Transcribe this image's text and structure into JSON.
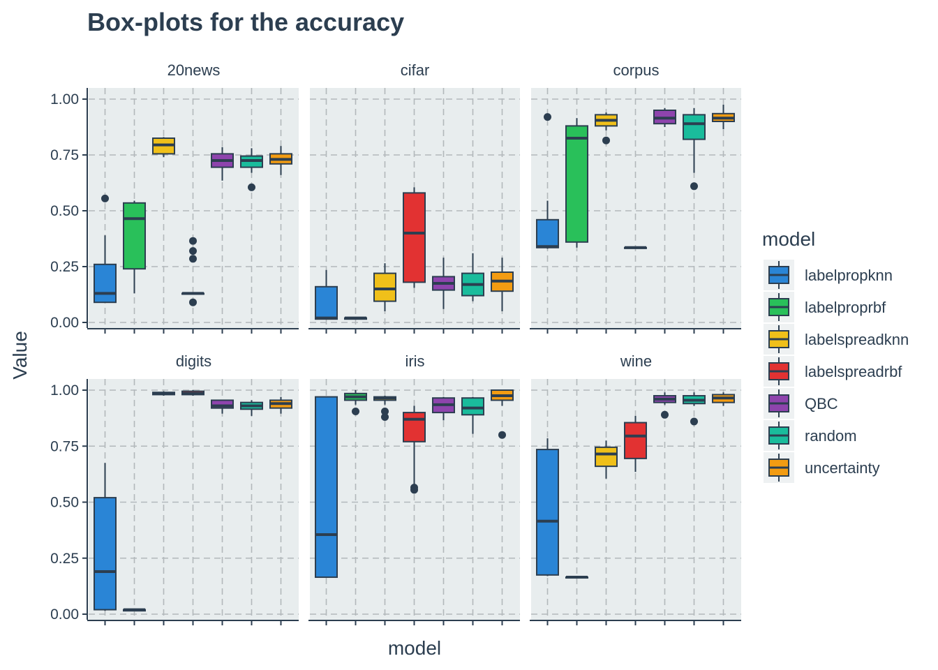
{
  "chart_data": {
    "type": "box",
    "title": "Box-plots for the accuracy",
    "xlabel": "model",
    "ylabel": "Value",
    "ylim": [
      0,
      1
    ],
    "y_ticks": [
      0,
      0.25,
      0.5,
      0.75,
      1
    ],
    "y_tick_labels": [
      "0.00",
      "0.25",
      "0.50",
      "0.75",
      "1.00"
    ],
    "grid": true,
    "legend": {
      "title": "model",
      "position": "right",
      "entries": [
        "labelpropknn",
        "labelproprbf",
        "labelspreadknn",
        "labelspreadrbf",
        "QBC",
        "random",
        "uncertainty"
      ]
    },
    "colors": {
      "labelpropknn": "#2a85d6",
      "labelproprbf": "#29c05a",
      "labelspreadknn": "#f0c01a",
      "labelspreadrbf": "#e23232",
      "QBC": "#8e44ad",
      "random": "#1abc9c",
      "uncertainty": "#f39c12",
      "panel_bg": "#e8edee",
      "grid": "#b2b8bb",
      "ink": "#2c3e50"
    },
    "models": [
      "labelpropknn",
      "labelproprbf",
      "labelspreadknn",
      "labelspreadrbf",
      "QBC",
      "random",
      "uncertainty"
    ],
    "panels": [
      {
        "name": "20news",
        "boxes": [
          {
            "model": "labelpropknn",
            "low": 0.09,
            "q1": 0.09,
            "median": 0.13,
            "q3": 0.26,
            "high": 0.39,
            "outliers": [
              0.555
            ]
          },
          {
            "model": "labelproprbf",
            "low": 0.13,
            "q1": 0.24,
            "median": 0.465,
            "q3": 0.535,
            "high": 0.545,
            "outliers": []
          },
          {
            "model": "labelspreadknn",
            "low": 0.74,
            "q1": 0.755,
            "median": 0.795,
            "q3": 0.825,
            "high": 0.83,
            "outliers": []
          },
          {
            "model": "labelspreadrbf",
            "low": 0.13,
            "q1": 0.13,
            "median": 0.13,
            "q3": 0.13,
            "high": 0.13,
            "outliers": [
              0.09,
              0.285,
              0.32,
              0.365
            ]
          },
          {
            "model": "QBC",
            "low": 0.635,
            "q1": 0.695,
            "median": 0.725,
            "q3": 0.755,
            "high": 0.785,
            "outliers": []
          },
          {
            "model": "random",
            "low": 0.67,
            "q1": 0.695,
            "median": 0.725,
            "q3": 0.745,
            "high": 0.78,
            "outliers": [
              0.605
            ]
          },
          {
            "model": "uncertainty",
            "low": 0.66,
            "q1": 0.71,
            "median": 0.73,
            "q3": 0.755,
            "high": 0.79,
            "outliers": []
          }
        ]
      },
      {
        "name": "cifar",
        "boxes": [
          {
            "model": "labelpropknn",
            "low": 0.015,
            "q1": 0.015,
            "median": 0.02,
            "q3": 0.16,
            "high": 0.235,
            "outliers": []
          },
          {
            "model": "labelproprbf",
            "low": 0.015,
            "q1": 0.015,
            "median": 0.02,
            "q3": 0.02,
            "high": 0.025,
            "outliers": []
          },
          {
            "model": "labelspreadknn",
            "low": 0.05,
            "q1": 0.095,
            "median": 0.15,
            "q3": 0.22,
            "high": 0.265,
            "outliers": []
          },
          {
            "model": "labelspreadrbf",
            "low": 0.155,
            "q1": 0.18,
            "median": 0.4,
            "q3": 0.58,
            "high": 0.605,
            "outliers": []
          },
          {
            "model": "QBC",
            "low": 0.06,
            "q1": 0.145,
            "median": 0.175,
            "q3": 0.205,
            "high": 0.29,
            "outliers": []
          },
          {
            "model": "random",
            "low": 0.095,
            "q1": 0.12,
            "median": 0.17,
            "q3": 0.22,
            "high": 0.31,
            "outliers": []
          },
          {
            "model": "uncertainty",
            "low": 0.05,
            "q1": 0.14,
            "median": 0.185,
            "q3": 0.225,
            "high": 0.29,
            "outliers": []
          }
        ]
      },
      {
        "name": "corpus",
        "boxes": [
          {
            "model": "labelpropknn",
            "low": 0.33,
            "q1": 0.335,
            "median": 0.34,
            "q3": 0.46,
            "high": 0.545,
            "outliers": [
              0.92
            ]
          },
          {
            "model": "labelproprbf",
            "low": 0.335,
            "q1": 0.36,
            "median": 0.825,
            "q3": 0.88,
            "high": 0.915,
            "outliers": []
          },
          {
            "model": "labelspreadknn",
            "low": 0.86,
            "q1": 0.88,
            "median": 0.905,
            "q3": 0.93,
            "high": 0.94,
            "outliers": [
              0.815
            ]
          },
          {
            "model": "labelspreadrbf",
            "low": 0.33,
            "q1": 0.335,
            "median": 0.335,
            "q3": 0.335,
            "high": 0.34,
            "outliers": []
          },
          {
            "model": "QBC",
            "low": 0.875,
            "q1": 0.89,
            "median": 0.915,
            "q3": 0.95,
            "high": 0.96,
            "outliers": []
          },
          {
            "model": "random",
            "low": 0.67,
            "q1": 0.82,
            "median": 0.89,
            "q3": 0.93,
            "high": 0.96,
            "outliers": [
              0.61
            ]
          },
          {
            "model": "uncertainty",
            "low": 0.865,
            "q1": 0.9,
            "median": 0.915,
            "q3": 0.935,
            "high": 0.975,
            "outliers": []
          }
        ]
      },
      {
        "name": "digits",
        "boxes": [
          {
            "model": "labelpropknn",
            "low": 0.015,
            "q1": 0.02,
            "median": 0.19,
            "q3": 0.52,
            "high": 0.675,
            "outliers": []
          },
          {
            "model": "labelproprbf",
            "low": 0.015,
            "q1": 0.015,
            "median": 0.02,
            "q3": 0.02,
            "high": 0.025,
            "outliers": []
          },
          {
            "model": "labelspreadknn",
            "low": 0.975,
            "q1": 0.98,
            "median": 0.985,
            "q3": 0.99,
            "high": 0.995,
            "outliers": []
          },
          {
            "model": "labelspreadrbf",
            "low": 0.975,
            "q1": 0.98,
            "median": 0.985,
            "q3": 0.995,
            "high": 1.0,
            "outliers": []
          },
          {
            "model": "QBC",
            "low": 0.895,
            "q1": 0.92,
            "median": 0.93,
            "q3": 0.955,
            "high": 0.955,
            "outliers": []
          },
          {
            "model": "random",
            "low": 0.885,
            "q1": 0.915,
            "median": 0.93,
            "q3": 0.945,
            "high": 0.955,
            "outliers": []
          },
          {
            "model": "uncertainty",
            "low": 0.895,
            "q1": 0.92,
            "median": 0.94,
            "q3": 0.955,
            "high": 0.97,
            "outliers": []
          }
        ]
      },
      {
        "name": "iris",
        "boxes": [
          {
            "model": "labelpropknn",
            "low": 0.165,
            "q1": 0.165,
            "median": 0.355,
            "q3": 0.97,
            "high": 0.97,
            "outliers": []
          },
          {
            "model": "labelproprbf",
            "low": 0.935,
            "q1": 0.955,
            "median": 0.97,
            "q3": 0.985,
            "high": 1.0,
            "outliers": [
              0.905
            ]
          },
          {
            "model": "labelspreadknn",
            "low": 0.935,
            "q1": 0.955,
            "median": 0.965,
            "q3": 0.97,
            "high": 0.975,
            "outliers": [
              0.88,
              0.905
            ]
          },
          {
            "model": "labelspreadrbf",
            "low": 0.58,
            "q1": 0.77,
            "median": 0.87,
            "q3": 0.9,
            "high": 0.93,
            "outliers": [
              0.555,
              0.565
            ]
          },
          {
            "model": "QBC",
            "low": 0.865,
            "q1": 0.9,
            "median": 0.935,
            "q3": 0.965,
            "high": 0.97,
            "outliers": []
          },
          {
            "model": "random",
            "low": 0.805,
            "q1": 0.89,
            "median": 0.92,
            "q3": 0.965,
            "high": 0.97,
            "outliers": []
          },
          {
            "model": "uncertainty",
            "low": 0.93,
            "q1": 0.955,
            "median": 0.975,
            "q3": 1.0,
            "high": 1.0,
            "outliers": [
              0.8
            ]
          }
        ]
      },
      {
        "name": "wine",
        "boxes": [
          {
            "model": "labelpropknn",
            "low": 0.17,
            "q1": 0.175,
            "median": 0.415,
            "q3": 0.735,
            "high": 0.785,
            "outliers": []
          },
          {
            "model": "labelproprbf",
            "low": 0.16,
            "q1": 0.165,
            "median": 0.165,
            "q3": 0.165,
            "high": 0.17,
            "outliers": []
          },
          {
            "model": "labelspreadknn",
            "low": 0.605,
            "q1": 0.66,
            "median": 0.715,
            "q3": 0.745,
            "high": 0.775,
            "outliers": []
          },
          {
            "model": "labelspreadrbf",
            "low": 0.635,
            "q1": 0.695,
            "median": 0.795,
            "q3": 0.855,
            "high": 0.885,
            "outliers": []
          },
          {
            "model": "QBC",
            "low": 0.935,
            "q1": 0.945,
            "median": 0.96,
            "q3": 0.975,
            "high": 0.99,
            "outliers": [
              0.89
            ]
          },
          {
            "model": "random",
            "low": 0.93,
            "q1": 0.94,
            "median": 0.955,
            "q3": 0.975,
            "high": 0.99,
            "outliers": [
              0.86
            ]
          },
          {
            "model": "uncertainty",
            "low": 0.93,
            "q1": 0.945,
            "median": 0.965,
            "q3": 0.98,
            "high": 0.99,
            "outliers": []
          }
        ]
      }
    ]
  }
}
